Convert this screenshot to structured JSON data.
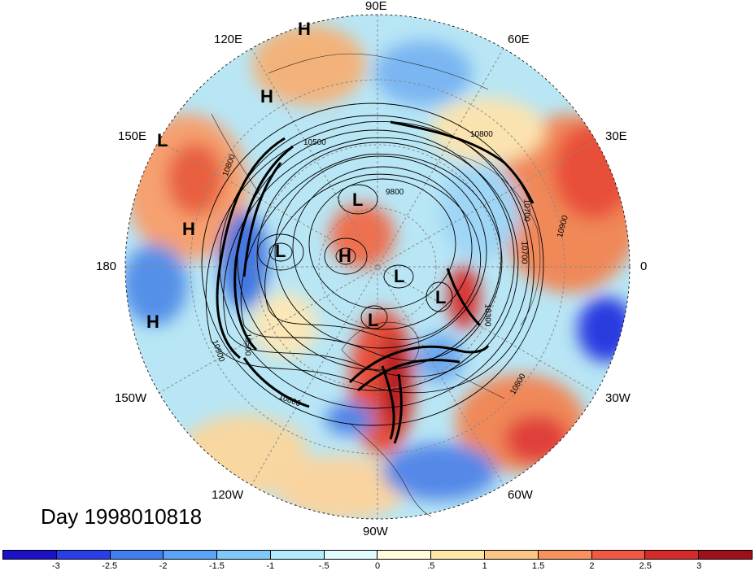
{
  "title": "Day 1998010818",
  "longitude_labels": {
    "lon_90e": "90E",
    "lon_60e": "60E",
    "lon_30e": "30E",
    "lon_0": "0",
    "lon_30w": "30W",
    "lon_60w": "60W",
    "lon_90w": "90W",
    "lon_120w": "120W",
    "lon_150w": "150W",
    "lon_180": "180",
    "lon_150e": "150E",
    "lon_120e": "120E"
  },
  "pressure_centers": [
    {
      "label": "H"
    },
    {
      "label": "H"
    },
    {
      "label": "L"
    },
    {
      "label": "H"
    },
    {
      "label": "H"
    },
    {
      "label": "L"
    },
    {
      "label": "L"
    },
    {
      "label": "H"
    },
    {
      "label": "L"
    },
    {
      "label": "L"
    },
    {
      "label": "L"
    }
  ],
  "contour_labels": [
    "10500",
    "9800",
    "10800",
    "10700",
    "10900",
    "10700",
    "10300",
    "10800",
    "10500",
    "10800",
    "10900",
    "10800"
  ],
  "colorbar": {
    "colors": [
      "#1c10c8",
      "#2a3ee8",
      "#3f7ff0",
      "#5aa4f6",
      "#7fc8fa",
      "#b0ecfb",
      "#e2fbfd",
      "#fffbdd",
      "#fde7a6",
      "#fbc384",
      "#f7925f",
      "#f05a45",
      "#d42a2a",
      "#a01018"
    ],
    "ticks": [
      "-3",
      "-2.5",
      "-2",
      "-1.5",
      "-1",
      "-.5",
      "0",
      ".5",
      "1",
      "1.5",
      "2",
      "2.5",
      "3"
    ]
  }
}
